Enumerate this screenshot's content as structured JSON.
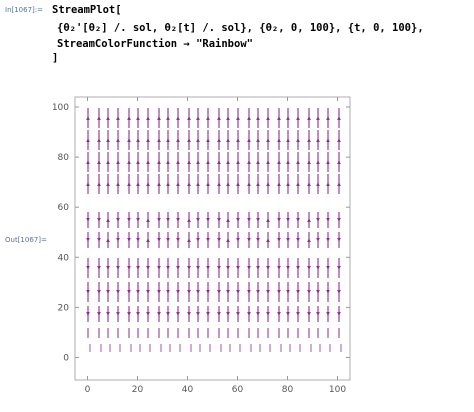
{
  "input_label": "In[1067]:=",
  "output_label": "Out[1067]=",
  "code_lines": [
    "StreamPlot[",
    "{θ₂'[θ₂] /. sol, θ₂[t] /. sol}, {θ₂, 0, 100}, {t, 0, 100},",
    "StreamColorFunction → \"Rainbow\"",
    "]"
  ],
  "chart_data": {
    "type": "streamplot",
    "color": "#8e2f8e",
    "xlim": [
      -5,
      105
    ],
    "ylim": [
      -9,
      104
    ],
    "xticks": [
      0,
      20,
      40,
      60,
      80,
      100
    ],
    "yticks": [
      0,
      20,
      40,
      60,
      80,
      100
    ]
  }
}
